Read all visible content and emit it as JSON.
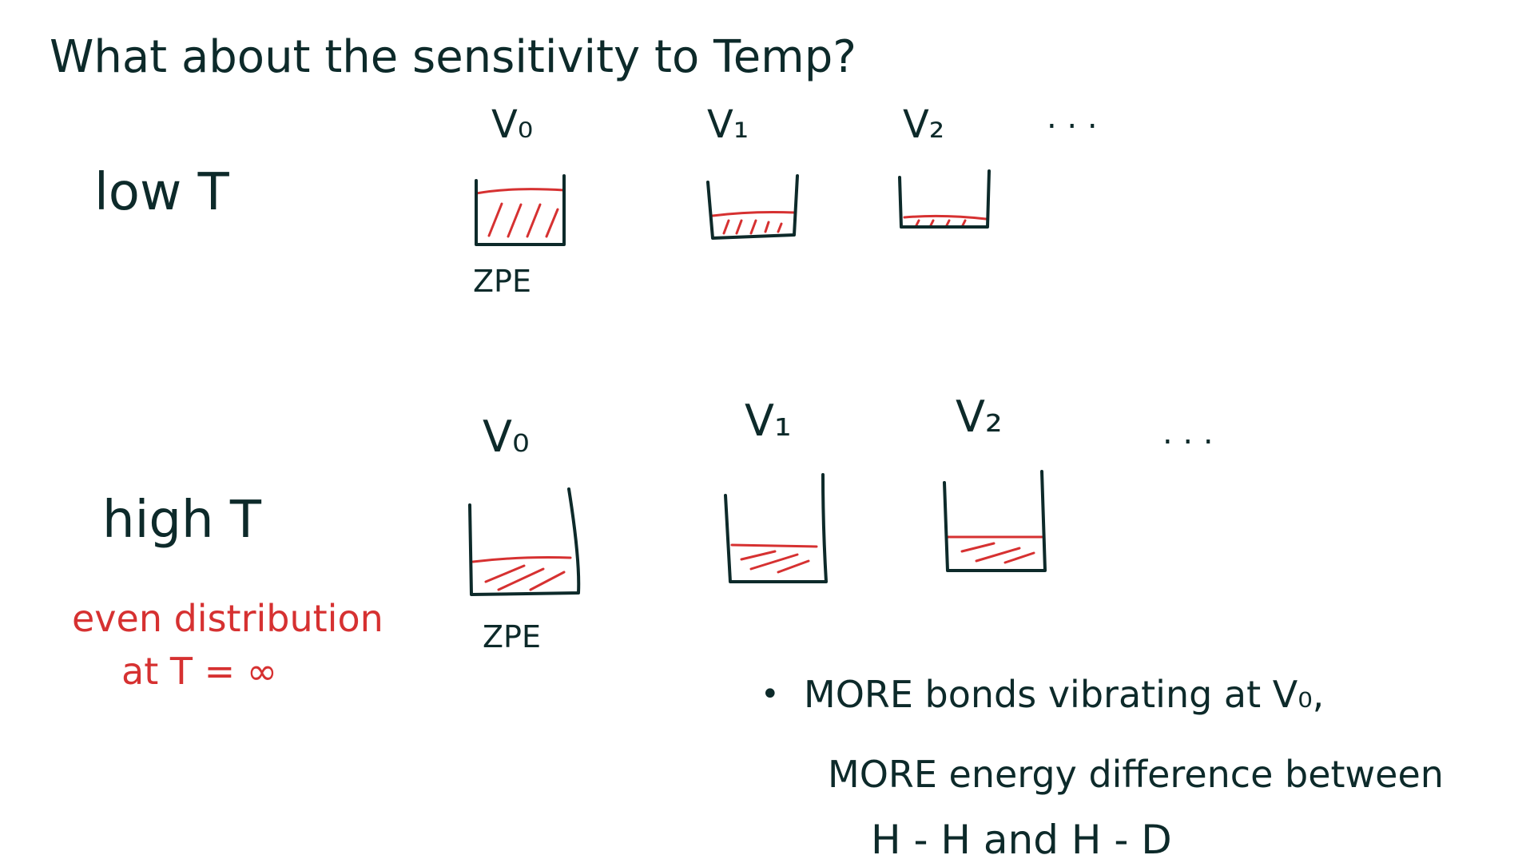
{
  "title": "What about the sensitivity to Temp?",
  "colors": {
    "ink": "#0d2a2a",
    "red": "#d63131"
  },
  "low": {
    "label": "low T",
    "levels": [
      "V₀",
      "V₁",
      "V₂"
    ],
    "ellipsis": ". . .",
    "zpe": "ZPE",
    "fill_fraction": [
      0.68,
      0.35,
      0.15
    ]
  },
  "high": {
    "label": "high T",
    "levels": [
      "V₀",
      "V₁",
      "V₂"
    ],
    "ellipsis": ". . .",
    "zpe": "ZPE",
    "note_line1": "even distribution",
    "note_line2": "at  T = ∞",
    "fill_fraction": [
      0.38,
      0.4,
      0.42
    ]
  },
  "conclusion": {
    "bullet": "•",
    "line1": "MORE bonds vibrating at V₀,",
    "line2": "MORE energy difference between",
    "line3": "H - H   and   H - D"
  }
}
